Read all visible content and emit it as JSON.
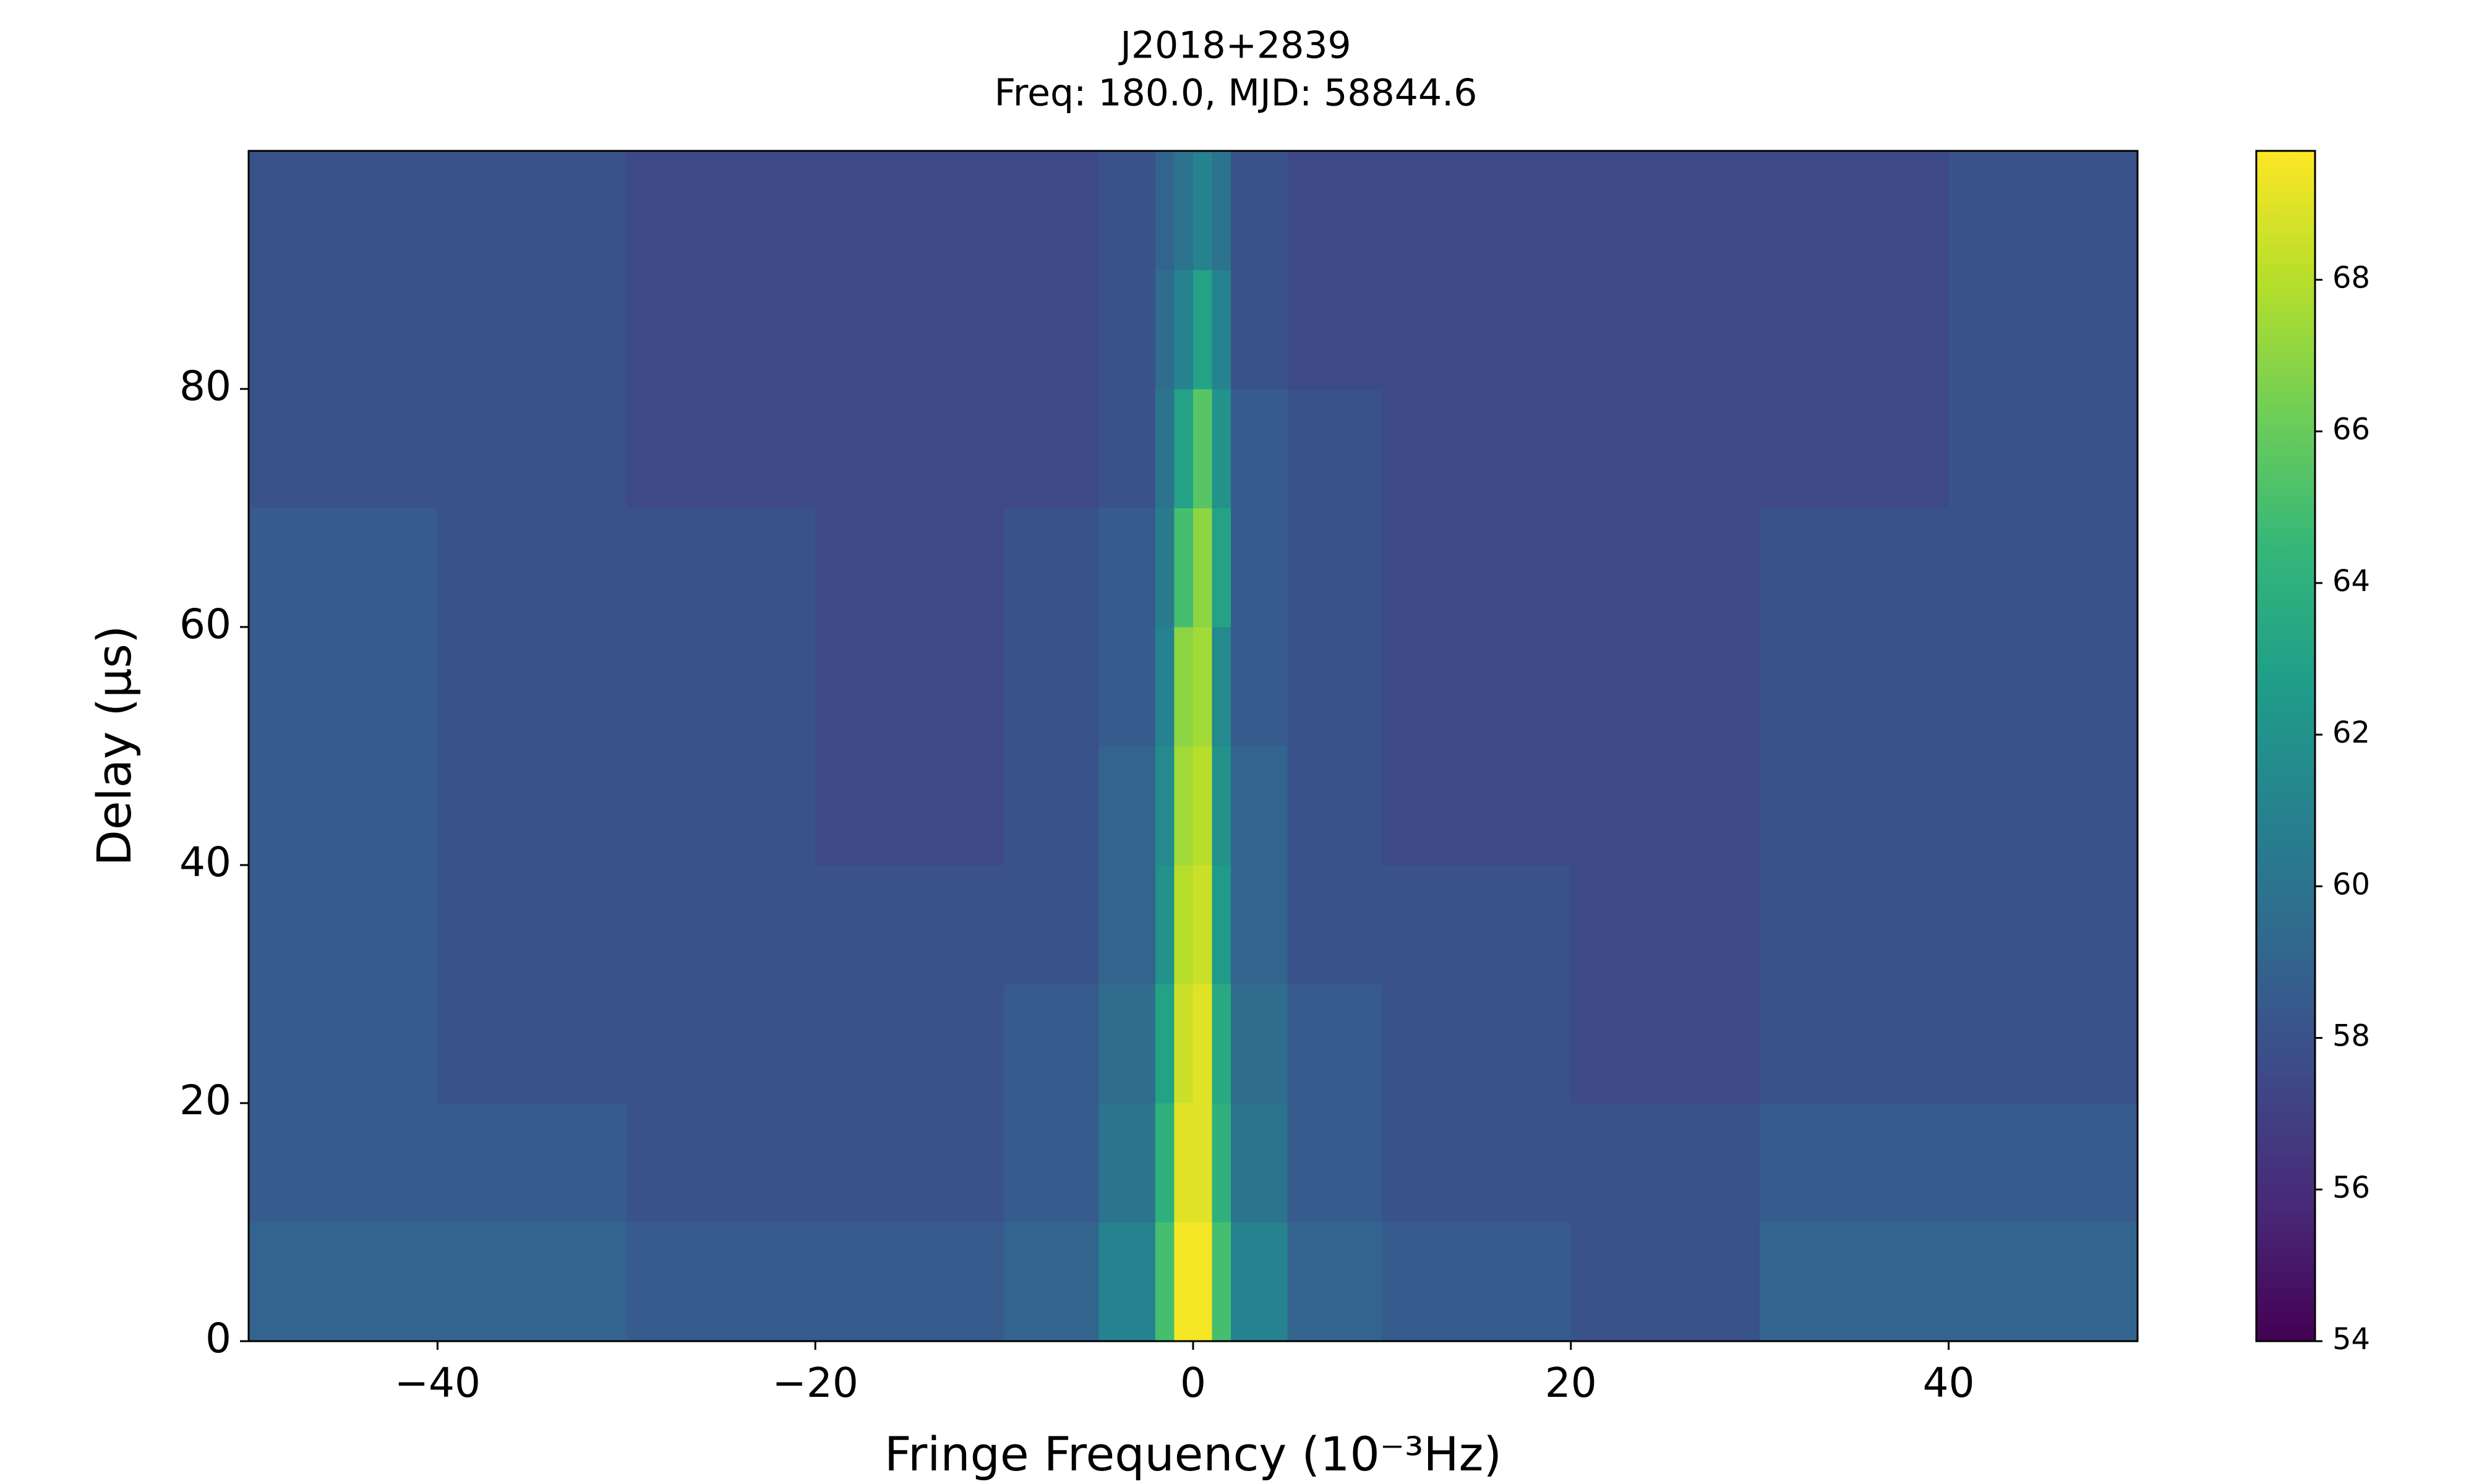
{
  "chart_data": {
    "type": "heatmap",
    "title": "J2018+2839",
    "subtitle": "Freq: 180.0, MJD: 58844.6",
    "xlabel": "Fringe Frequency (10⁻³Hz)",
    "ylabel": "Delay (μs)",
    "colormap": "viridis",
    "x": [
      -50,
      -40,
      -30,
      -20,
      -10,
      -5,
      -2,
      -1,
      0,
      1,
      2,
      5,
      10,
      20,
      30,
      40,
      50
    ],
    "y": [
      0,
      10,
      20,
      30,
      40,
      50,
      60,
      70,
      80,
      90,
      100
    ],
    "z": [
      [
        59,
        59,
        58.5,
        58.5,
        59,
        61,
        65,
        69.5,
        69.5,
        65,
        61,
        59,
        58.5,
        58,
        59,
        59
      ],
      [
        58.5,
        58.5,
        58,
        58,
        58.5,
        60,
        64,
        69,
        69,
        64,
        60,
        58.5,
        58,
        58,
        58.5,
        58.5
      ],
      [
        58.5,
        58,
        58,
        58,
        58.5,
        59.5,
        63,
        68.5,
        69,
        63.5,
        59.5,
        58.5,
        58,
        57.5,
        58,
        58
      ],
      [
        58.5,
        58,
        58,
        58,
        58,
        59,
        62,
        68,
        68.5,
        62.5,
        59,
        58,
        58,
        57.5,
        58,
        58
      ],
      [
        58.5,
        58,
        58,
        57.5,
        58,
        59,
        61.5,
        67.5,
        68,
        62,
        59,
        58,
        57.5,
        57.5,
        58,
        58
      ],
      [
        58.5,
        58,
        58,
        57.5,
        58,
        58.5,
        61,
        67,
        67.5,
        61.5,
        58.5,
        58,
        57.5,
        57.5,
        58,
        58
      ],
      [
        58.5,
        58,
        58,
        57.5,
        58,
        58.5,
        60.5,
        65,
        67,
        63,
        58.5,
        58,
        57.5,
        57.5,
        58,
        58
      ],
      [
        58,
        58,
        57.5,
        57.5,
        57.5,
        58,
        60,
        63,
        65.5,
        62,
        58.5,
        58,
        57.5,
        57.5,
        57.5,
        58
      ],
      [
        58,
        58,
        57.5,
        57.5,
        57.5,
        58,
        59.5,
        61,
        63,
        61,
        58,
        57.5,
        57.5,
        57.5,
        57.5,
        58
      ],
      [
        58,
        58,
        57.5,
        57.5,
        57.5,
        58,
        59,
        60,
        61,
        60,
        58,
        57.5,
        57.5,
        57.5,
        57.5,
        58
      ]
    ],
    "xlim": [
      -50,
      50
    ],
    "ylim": [
      0,
      100
    ],
    "xticks": [
      {
        "value": -40,
        "label": "−40"
      },
      {
        "value": -20,
        "label": "−20"
      },
      0,
      20,
      40
    ],
    "yticks": [
      0,
      20,
      40,
      60,
      80
    ],
    "clim": [
      54,
      69.7
    ],
    "cticks": [
      54,
      56,
      58,
      60,
      62,
      64,
      66,
      68
    ]
  }
}
